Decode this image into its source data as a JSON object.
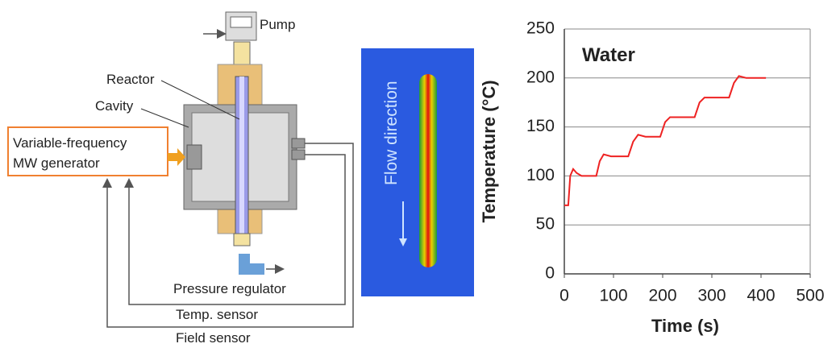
{
  "diagram": {
    "labels": {
      "pump": "Pump",
      "reactor": "Reactor",
      "cavity": "Cavity",
      "generator_line1": "Variable-frequency",
      "generator_line2": "MW generator",
      "pressure_regulator": "Pressure regulator",
      "temp_sensor": "Temp. sensor",
      "field_sensor": "Field sensor",
      "flow": "Flow direction"
    }
  },
  "chart_data": {
    "type": "line",
    "title": "Water",
    "x_label": "Time (s)",
    "y_label": "Temperature (°C)",
    "x": [
      0,
      8,
      12,
      18,
      25,
      35,
      65,
      72,
      80,
      95,
      130,
      140,
      150,
      165,
      195,
      205,
      215,
      265,
      275,
      285,
      335,
      345,
      355,
      370,
      410
    ],
    "values": [
      70,
      70,
      100,
      107,
      103,
      100,
      100,
      115,
      122,
      120,
      120,
      135,
      142,
      140,
      140,
      155,
      160,
      160,
      175,
      180,
      180,
      195,
      202,
      200,
      200
    ],
    "color": "#ee2222",
    "xlim": [
      0,
      500
    ],
    "ylim": [
      0,
      250
    ],
    "xticks": [
      0,
      100,
      200,
      300,
      400,
      500
    ],
    "yticks": [
      0,
      50,
      100,
      150,
      200,
      250
    ],
    "grid": true
  }
}
